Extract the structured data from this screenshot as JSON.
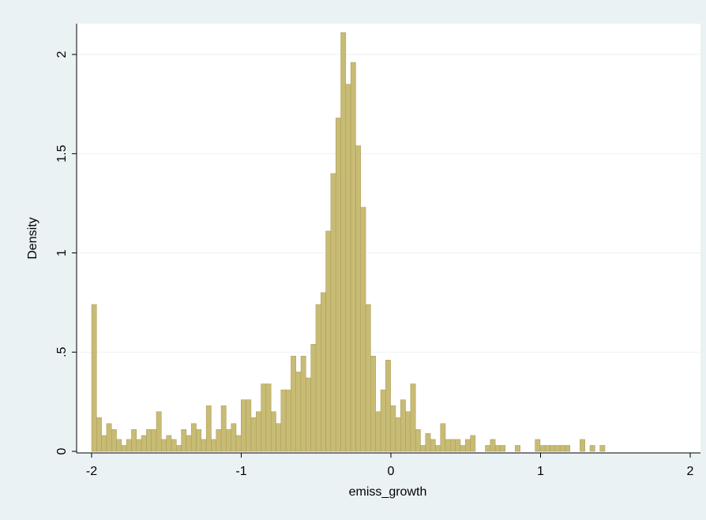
{
  "colors": {
    "outer_background": "#eaf2f3",
    "plot_background": "#ffffff",
    "bar_fill": "#c8bb74",
    "bar_edge": "#a8995a",
    "gridline": "#eaf2f3",
    "axis": "#000000"
  },
  "chart_data": {
    "type": "bar",
    "subtype": "histogram",
    "title": "",
    "xlabel": "emiss_growth",
    "ylabel": "Density",
    "xlim": [
      -2.0,
      2.0
    ],
    "ylim": [
      0,
      2.2
    ],
    "x_ticks": [
      -2,
      -1,
      0,
      1,
      2
    ],
    "x_tick_labels": [
      "-2",
      "-1",
      "0",
      "1",
      "2"
    ],
    "y_ticks": [
      0,
      0.5,
      1,
      1.5,
      2
    ],
    "y_tick_labels": [
      "0",
      ".5",
      "1",
      "1.5",
      "2"
    ],
    "grid": "horizontal",
    "legend": "none",
    "bin_width": 0.0333,
    "bin_start": -2.0,
    "values": [
      0.74,
      0.17,
      0.08,
      0.14,
      0.11,
      0.06,
      0.03,
      0.06,
      0.11,
      0.06,
      0.08,
      0.11,
      0.11,
      0.2,
      0.06,
      0.08,
      0.06,
      0.03,
      0.11,
      0.08,
      0.14,
      0.11,
      0.06,
      0.23,
      0.06,
      0.11,
      0.23,
      0.11,
      0.14,
      0.08,
      0.26,
      0.26,
      0.17,
      0.2,
      0.34,
      0.34,
      0.2,
      0.14,
      0.31,
      0.31,
      0.48,
      0.4,
      0.48,
      0.37,
      0.54,
      0.74,
      0.8,
      1.11,
      1.4,
      1.68,
      2.11,
      1.85,
      1.96,
      1.54,
      1.23,
      0.74,
      0.48,
      0.2,
      0.31,
      0.46,
      0.23,
      0.17,
      0.26,
      0.2,
      0.34,
      0.11,
      0.03,
      0.09,
      0.06,
      0.03,
      0.14,
      0.06,
      0.06,
      0.06,
      0.03,
      0.06,
      0.08,
      0.0,
      0.0,
      0.03,
      0.06,
      0.03,
      0.03,
      0.0,
      0.0,
      0.03,
      0.0,
      0.0,
      0.0,
      0.06,
      0.03,
      0.03,
      0.03,
      0.03,
      0.03,
      0.03,
      0.0,
      0.0,
      0.06,
      0.0,
      0.03,
      0.0,
      0.03
    ]
  }
}
